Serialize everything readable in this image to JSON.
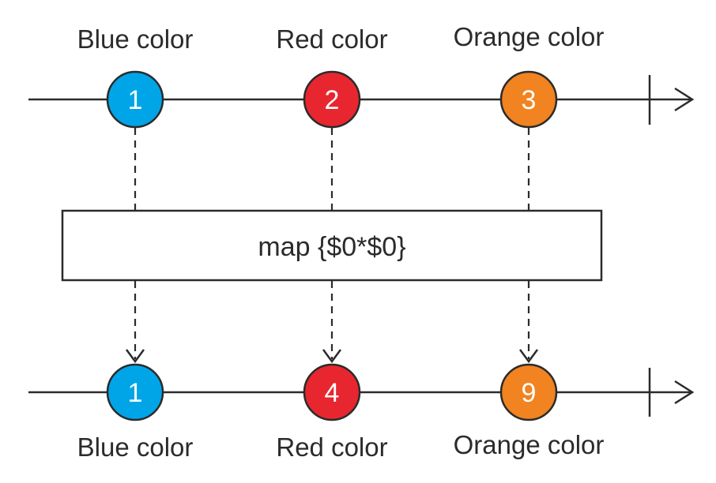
{
  "operator": {
    "label": "map {$0*$0}"
  },
  "input_stream": {
    "items": [
      {
        "label": "Blue color",
        "value": "1",
        "color": "#00a5e8"
      },
      {
        "label": "Red color",
        "value": "2",
        "color": "#e8262f"
      },
      {
        "label": "Orange color",
        "value": "3",
        "color": "#f18320"
      }
    ]
  },
  "output_stream": {
    "items": [
      {
        "label": "Blue color",
        "value": "1",
        "color": "#00a5e8"
      },
      {
        "label": "Red color",
        "value": "4",
        "color": "#e8262f"
      },
      {
        "label": "Orange color",
        "value": "9",
        "color": "#f18320"
      }
    ]
  },
  "colors": {
    "line": "#2b2b2b",
    "background": "#ffffff"
  }
}
